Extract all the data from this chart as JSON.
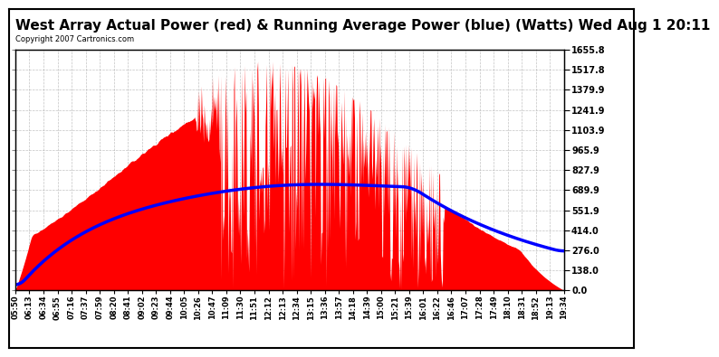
{
  "title": "West Array Actual Power (red) & Running Average Power (blue) (Watts) Wed Aug 1 20:11",
  "copyright": "Copyright 2007 Cartronics.com",
  "ylabel_right_ticks": [
    0.0,
    138.0,
    276.0,
    414.0,
    551.9,
    689.9,
    827.9,
    965.9,
    1103.9,
    1241.9,
    1379.9,
    1517.8,
    1655.8
  ],
  "ymax": 1655.8,
  "ymin": 0.0,
  "background_color": "#ffffff",
  "plot_bg_color": "#ffffff",
  "grid_color": "#aaaaaa",
  "xtick_labels": [
    "05:50",
    "06:13",
    "06:34",
    "06:55",
    "07:16",
    "07:37",
    "07:59",
    "08:20",
    "08:41",
    "09:02",
    "09:23",
    "09:44",
    "10:05",
    "10:26",
    "10:47",
    "11:09",
    "11:30",
    "11:51",
    "12:12",
    "12:13",
    "12:34",
    "13:15",
    "13:36",
    "13:57",
    "14:18",
    "14:39",
    "15:00",
    "15:21",
    "15:39",
    "16:01",
    "16:22",
    "16:46",
    "17:07",
    "17:28",
    "17:49",
    "18:10",
    "18:31",
    "18:52",
    "19:13",
    "19:34"
  ],
  "actual_color": "#ff0000",
  "avg_color": "#0000ff",
  "avg_linewidth": 2.5,
  "border_color": "#000000",
  "title_fontsize": 11,
  "copyright_fontsize": 6,
  "xtick_fontsize": 6,
  "ytick_fontsize": 7
}
